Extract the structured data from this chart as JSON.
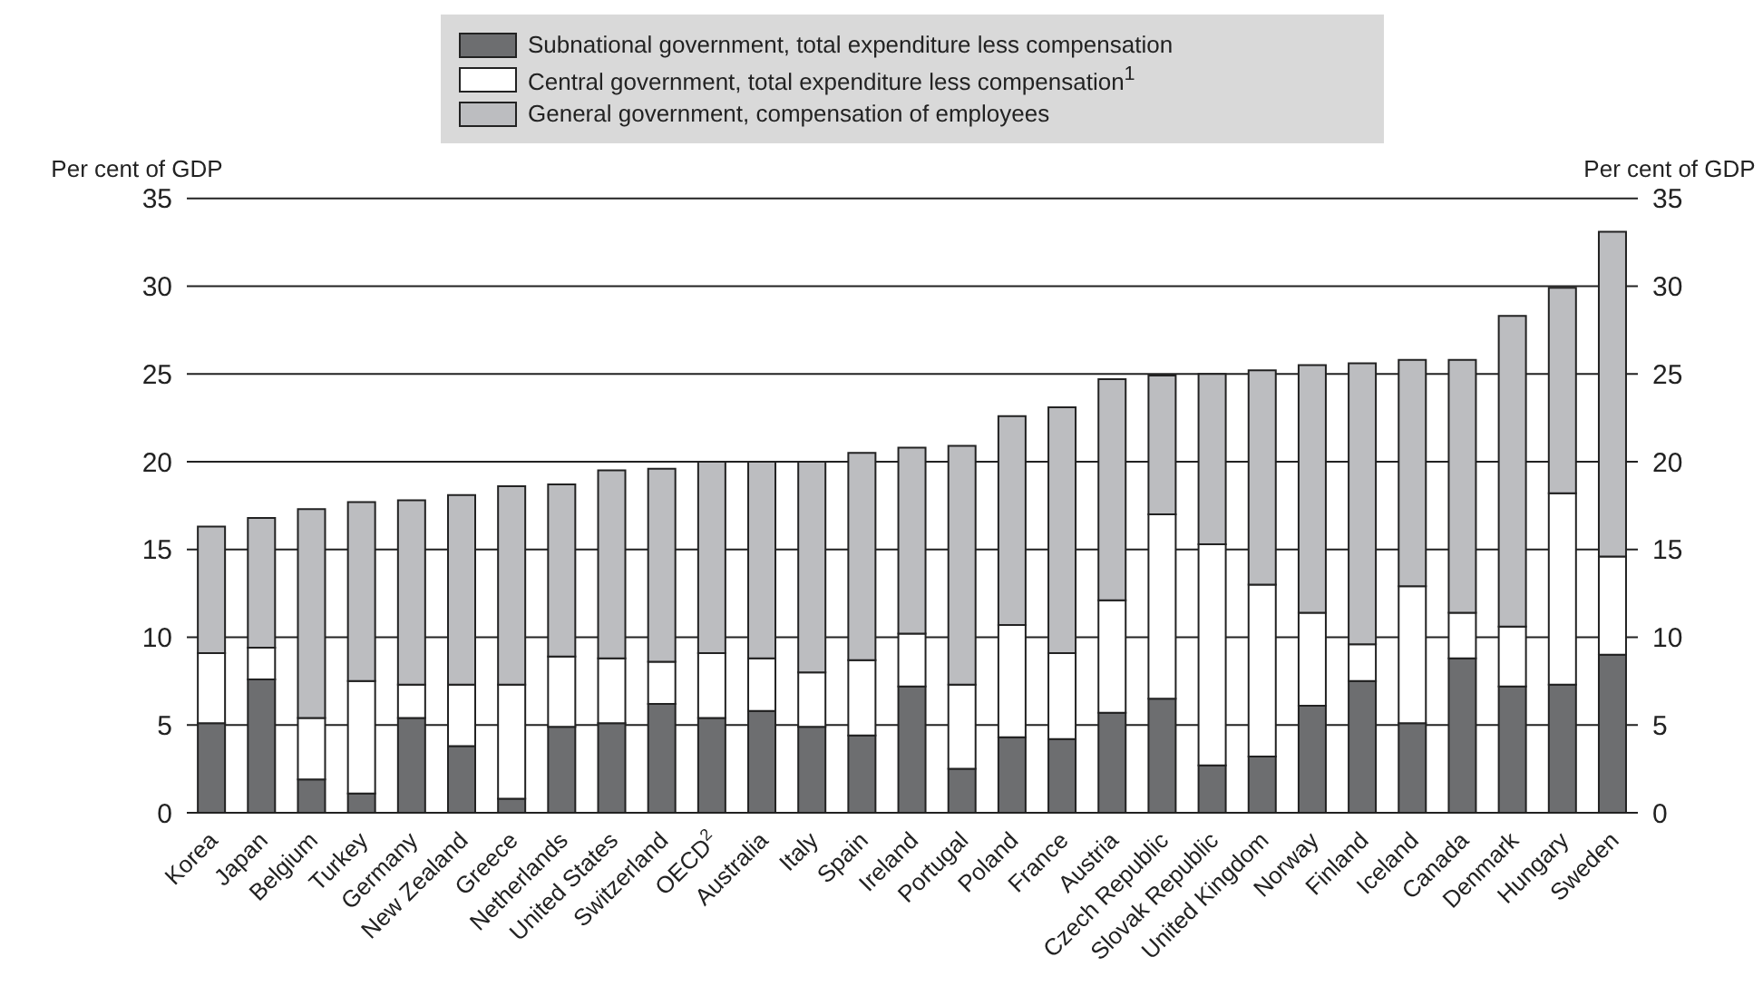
{
  "chart_data": {
    "type": "bar",
    "stacked": true,
    "categories": [
      "Korea",
      "Japan",
      "Belgium",
      "Turkey",
      "Germany",
      "New Zealand",
      "Greece",
      "Netherlands",
      "United States",
      "Switzerland",
      "OECD$^{2}$",
      "Australia",
      "Italy",
      "Spain",
      "Ireland",
      "Portugal",
      "Poland",
      "France",
      "Austria",
      "Czech Republic",
      "Slovak Republic",
      "United Kingdom",
      "Norway",
      "Finland",
      "Iceland",
      "Canada",
      "Denmark",
      "Hungary",
      "Sweden"
    ],
    "series": [
      {
        "name": "Subnational government, total expenditure less compensation",
        "color": "#6d6e70",
        "values": [
          5.1,
          7.6,
          1.9,
          1.1,
          5.4,
          3.8,
          0.8,
          4.9,
          5.1,
          6.2,
          5.4,
          5.8,
          4.9,
          4.4,
          7.2,
          2.5,
          4.3,
          4.2,
          5.7,
          6.5,
          2.7,
          3.2,
          6.1,
          7.5,
          5.1,
          8.8,
          7.2,
          7.3,
          9.0
        ]
      },
      {
        "name": "Central government, total expenditure less compensation$^{1}$",
        "color": "#ffffff",
        "values": [
          4.0,
          1.8,
          3.5,
          6.4,
          1.9,
          3.5,
          6.5,
          4.0,
          3.7,
          2.4,
          3.7,
          3.0,
          3.1,
          4.3,
          3.0,
          4.8,
          6.4,
          4.9,
          6.4,
          10.5,
          12.6,
          9.8,
          5.3,
          2.1,
          7.8,
          2.6,
          3.4,
          10.9,
          5.6
        ]
      },
      {
        "name": "General government, compensation of employees",
        "color": "#bcbdc0",
        "values": [
          7.2,
          7.4,
          11.9,
          10.2,
          10.5,
          10.8,
          11.3,
          9.8,
          10.7,
          11.0,
          10.9,
          11.2,
          12.0,
          11.8,
          10.6,
          13.6,
          11.9,
          14.0,
          12.6,
          7.9,
          9.7,
          12.2,
          14.1,
          16.0,
          12.9,
          14.4,
          17.7,
          11.7,
          18.5
        ]
      }
    ],
    "ylabel": "Per cent of GDP",
    "y2label": "Per cent of GDP",
    "ylim": [
      0,
      35
    ],
    "yticks": [
      0,
      5,
      10,
      15,
      20,
      25,
      30,
      35
    ],
    "y2lim": [
      0,
      35
    ],
    "y2ticks": [
      0,
      5,
      10,
      15,
      20,
      25,
      30,
      35
    ],
    "grid": "y",
    "legend": "top"
  }
}
